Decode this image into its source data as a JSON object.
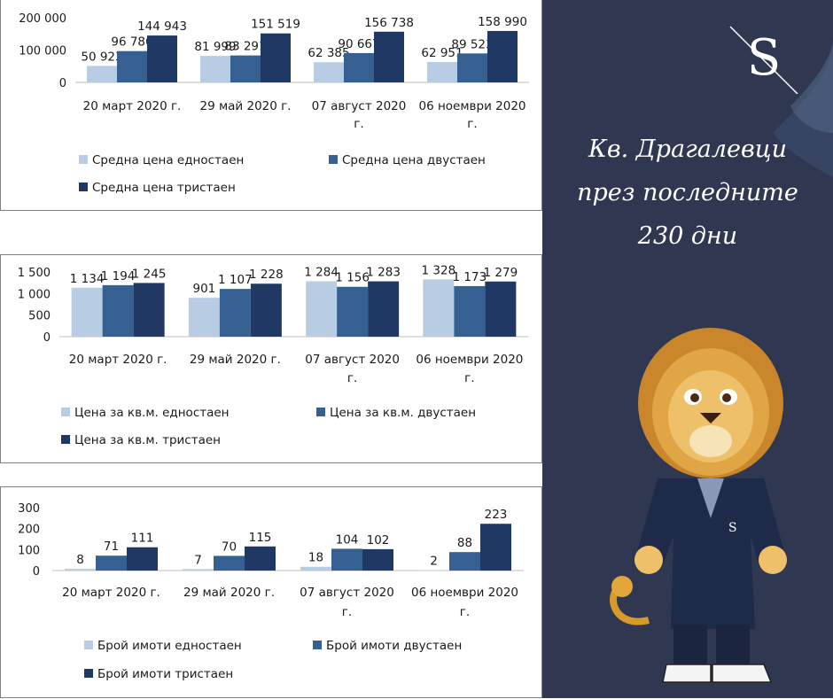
{
  "colors": {
    "single": "#b8cce4",
    "double": "#366092",
    "triple": "#1f3864",
    "panel_bg": "#2f3850"
  },
  "categories": [
    "20 март 2020 г.",
    "29 май 2020 г.",
    "07 август 2020 г.",
    "06 ноември 2020 г."
  ],
  "chart_data": [
    {
      "type": "bar",
      "categories": [
        "20 март 2020 г.",
        "29 май 2020 г.",
        "07 август 2020 г.",
        "06 ноември 2020 г."
      ],
      "series": [
        {
          "name": "Средна цена едностаен",
          "values": [
            50923,
            81999,
            62385,
            62951
          ],
          "labels": [
            "50 923",
            "81 999",
            "62 385",
            "62 951"
          ]
        },
        {
          "name": "Средна цена двустаен",
          "values": [
            96786,
            83291,
            90667,
            89523
          ],
          "labels": [
            "96 786",
            "83 291",
            "90 667",
            "89 523"
          ]
        },
        {
          "name": "Средна цена тристаен",
          "values": [
            144943,
            151519,
            156738,
            158990
          ],
          "labels": [
            "144 943",
            "151 519",
            "156 738",
            "158 990"
          ]
        }
      ],
      "yticks": [
        "0",
        "100 000",
        "200 000"
      ],
      "ylim": [
        0,
        200000
      ],
      "legend": "bottom"
    },
    {
      "type": "bar",
      "categories": [
        "20 март 2020 г.",
        "29 май 2020 г.",
        "07 август 2020 г.",
        "06 ноември 2020 г."
      ],
      "series": [
        {
          "name": "Цена за кв.м. едностаен",
          "values": [
            1134,
            901,
            1284,
            1328
          ],
          "labels": [
            "1 134",
            "901",
            "1 284",
            "1 328"
          ]
        },
        {
          "name": "Цена за кв.м. двустаен",
          "values": [
            1194,
            1107,
            1156,
            1173
          ],
          "labels": [
            "1 194",
            "1 107",
            "1 156",
            "1 173"
          ]
        },
        {
          "name": "Цена за кв.м. тристаен",
          "values": [
            1245,
            1228,
            1283,
            1279
          ],
          "labels": [
            "1 245",
            "1 228",
            "1 283",
            "1 279"
          ]
        }
      ],
      "yticks": [
        "0",
        "500",
        "1 000",
        "1 500"
      ],
      "ylim": [
        0,
        1500
      ],
      "legend": "bottom"
    },
    {
      "type": "bar",
      "categories": [
        "20 март 2020 г.",
        "29 май 2020 г.",
        "07 август 2020 г.",
        "06 ноември 2020 г."
      ],
      "series": [
        {
          "name": "Брой имоти едностаен",
          "values": [
            8,
            7,
            18,
            2
          ],
          "labels": [
            "8",
            "7",
            "18",
            "2"
          ]
        },
        {
          "name": "Брой имоти двустаен",
          "values": [
            71,
            70,
            104,
            88
          ],
          "labels": [
            "71",
            "70",
            "104",
            "88"
          ]
        },
        {
          "name": "Брой имоти тристаен",
          "values": [
            111,
            115,
            102,
            223
          ],
          "labels": [
            "111",
            "115",
            "102",
            "223"
          ]
        }
      ],
      "yticks": [
        "0",
        "100",
        "200",
        "300"
      ],
      "ylim": [
        0,
        300
      ],
      "legend": "bottom"
    }
  ],
  "sidebar": {
    "title_lines": [
      "Кв. Драгалевци",
      "през последните",
      "230 дни"
    ],
    "logo_letter": "S",
    "mascot_badge": "S"
  }
}
